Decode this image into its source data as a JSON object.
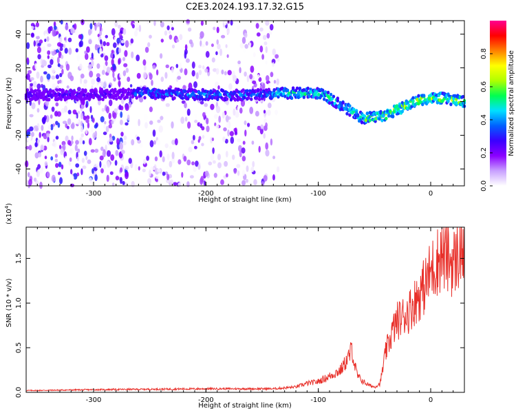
{
  "page": {
    "title": "C2E3.2024.193.17.32.G15"
  },
  "chart_data": [
    {
      "type": "heatmap",
      "title": "C2E3.2024.193.17.32.G15",
      "xlabel": "Height of straight line (km)",
      "ylabel": "Frequency (Hz)",
      "xlim": [
        -360,
        30
      ],
      "ylim": [
        -50,
        48
      ],
      "xticks": [
        "-300",
        "-200",
        "-100",
        "0"
      ],
      "yticks": [
        "-40",
        "-20",
        "0",
        "20",
        "40"
      ],
      "colorbar": {
        "label": "Normalized spectral amplitude",
        "range": [
          0,
          1
        ],
        "ticks": [
          "0.0",
          "0.2",
          "0.4",
          "0.6",
          "0.8"
        ],
        "colors": [
          "#ffffff",
          "#c8a0ff",
          "#8b00ff",
          "#3a00ff",
          "#0060ff",
          "#00e0ff",
          "#00ff50",
          "#b0ff00",
          "#ffff00",
          "#ff8000",
          "#ff0000",
          "#ff0090"
        ]
      },
      "ridge": {
        "x": [
          -350,
          -300,
          -260,
          -200,
          -150,
          -130,
          -100,
          -90,
          -80,
          -70,
          -60,
          -50,
          -40,
          -30,
          -20,
          -10,
          0,
          10,
          20,
          30
        ],
        "freq": [
          4,
          4,
          5,
          4,
          4,
          5,
          5,
          2,
          -2,
          -6,
          -10,
          -9,
          -8,
          -5,
          -2,
          1,
          2,
          2,
          1,
          0
        ]
      }
    },
    {
      "type": "line",
      "xlabel": "Height of straight line (km)",
      "ylabel": "SNR (10 * v/v)",
      "multiplier_label": "(x10",
      "multiplier_exp": "4",
      "multiplier_close": ")",
      "xlim": [
        -360,
        30
      ],
      "ylim": [
        0,
        1.85
      ],
      "xticks": [
        "-300",
        "-200",
        "-100",
        "0"
      ],
      "yticks": [
        "0.0",
        "0.5",
        "1.0",
        "1.5"
      ],
      "line_color": "#e8302a",
      "series": [
        {
          "x": [
            -360,
            -300,
            -200,
            -140,
            -120,
            -110,
            -100,
            -90,
            -80,
            -75,
            -72,
            -70,
            -68,
            -65,
            -60,
            -55,
            -50,
            -45,
            -40,
            -35,
            -30,
            -25,
            -20,
            -15,
            -10,
            -5,
            0,
            5,
            10,
            15,
            20,
            25,
            30
          ],
          "values": [
            0.02,
            0.03,
            0.04,
            0.04,
            0.06,
            0.1,
            0.12,
            0.18,
            0.25,
            0.35,
            0.42,
            0.5,
            0.32,
            0.18,
            0.12,
            0.08,
            0.06,
            0.1,
            0.45,
            0.65,
            0.8,
            0.85,
            0.9,
            1.0,
            1.1,
            1.2,
            1.35,
            1.45,
            1.55,
            1.5,
            1.45,
            1.55,
            1.65
          ]
        }
      ]
    }
  ]
}
